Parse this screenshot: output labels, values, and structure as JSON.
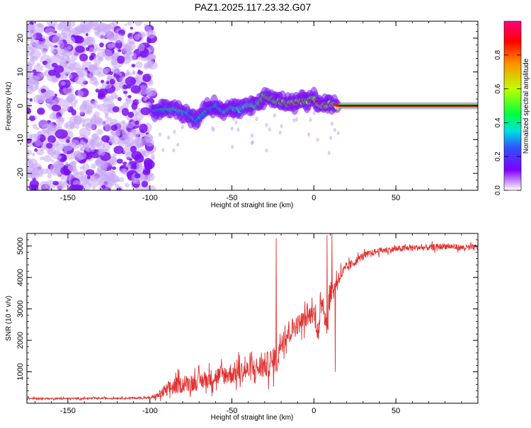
{
  "title": "PAZ1.2025.117.23.32.G07",
  "chart_data": [
    {
      "type": "heatmap",
      "xlabel": "Height of straight line (km)",
      "ylabel": "Frequency (Hz)",
      "xlim": [
        -175,
        100
      ],
      "ylim": [
        -25,
        25
      ],
      "x_ticks": [
        -150,
        -100,
        -50,
        0,
        50
      ],
      "y_ticks": [
        -20,
        -10,
        0,
        10,
        20
      ],
      "colorbar": {
        "label": "Normalized spectral amplitude",
        "range": [
          0,
          1
        ],
        "ticks": [
          0.0,
          0.2,
          0.4,
          0.6,
          0.8
        ],
        "colors": [
          "#ffffff",
          "#8000ff",
          "#3050ff",
          "#00e0e0",
          "#00ff40",
          "#c0ff00",
          "#ff9000",
          "#ff0000",
          "#ff0080"
        ]
      },
      "noise_region": {
        "x": [
          -175,
          -98
        ],
        "y": [
          -25,
          25
        ],
        "amplitude": 0.2
      },
      "signal_track": [
        {
          "x": -98,
          "y": -1.5,
          "a": 0.35
        },
        {
          "x": -92,
          "y": -1.0,
          "a": 0.45
        },
        {
          "x": -85,
          "y": -1.0,
          "a": 0.5
        },
        {
          "x": -78,
          "y": -2.0,
          "a": 0.45
        },
        {
          "x": -72,
          "y": -4.5,
          "a": 0.4
        },
        {
          "x": -65,
          "y": -1.0,
          "a": 0.45
        },
        {
          "x": -60,
          "y": 0.0,
          "a": 0.45
        },
        {
          "x": -55,
          "y": -2.0,
          "a": 0.5
        },
        {
          "x": -50,
          "y": -0.5,
          "a": 0.5
        },
        {
          "x": -45,
          "y": -1.0,
          "a": 0.55
        },
        {
          "x": -40,
          "y": 0.0,
          "a": 0.6
        },
        {
          "x": -35,
          "y": 0.0,
          "a": 0.65
        },
        {
          "x": -30,
          "y": 3.0,
          "a": 0.8
        },
        {
          "x": -25,
          "y": 2.0,
          "a": 0.8
        },
        {
          "x": -20,
          "y": 1.0,
          "a": 0.85
        },
        {
          "x": -15,
          "y": 0.5,
          "a": 0.85
        },
        {
          "x": -10,
          "y": 1.0,
          "a": 0.9
        },
        {
          "x": -5,
          "y": 1.5,
          "a": 0.85
        },
        {
          "x": 0,
          "y": 2.0,
          "a": 0.85
        },
        {
          "x": 5,
          "y": 0.0,
          "a": 0.9
        },
        {
          "x": 10,
          "y": 0.5,
          "a": 0.9
        },
        {
          "x": 15,
          "y": 0.0,
          "a": 0.95
        }
      ],
      "steady_line": {
        "x": [
          15,
          100
        ],
        "y": 0,
        "amplitude": 0.9
      }
    },
    {
      "type": "line",
      "xlabel": "Height of straight line (km)",
      "ylabel": "SNR (10 * v/v)",
      "xlim": [
        -175,
        100
      ],
      "ylim": [
        0,
        5400
      ],
      "x_ticks": [
        -150,
        -100,
        -50,
        0,
        50
      ],
      "y_ticks": [
        1000,
        2000,
        3000,
        4000,
        5000
      ],
      "line_color": "#e03030",
      "series": [
        {
          "x": [
            -175,
            -150,
            -125,
            -100,
            -95,
            -90,
            -85,
            -80,
            -75,
            -70,
            -65,
            -60,
            -55,
            -50,
            -45,
            -40,
            -35,
            -30,
            -25,
            -22,
            -20,
            -15,
            -10,
            -5,
            0,
            3,
            5,
            8,
            10,
            12,
            15,
            20,
            25,
            30,
            40,
            50,
            60,
            70,
            80,
            90,
            100
          ],
          "y": [
            150,
            150,
            160,
            170,
            250,
            400,
            550,
            600,
            650,
            700,
            750,
            850,
            900,
            950,
            1000,
            1050,
            1100,
            1200,
            1300,
            1500,
            2000,
            2300,
            2500,
            2700,
            2900,
            2200,
            3400,
            2400,
            3500,
            3600,
            4000,
            4300,
            4500,
            4700,
            4850,
            4900,
            4950,
            4950,
            5000,
            4950,
            4950
          ],
          "noise": [
            40,
            40,
            40,
            50,
            150,
            350,
            400,
            350,
            400,
            400,
            400,
            450,
            450,
            500,
            500,
            500,
            550,
            600,
            600,
            700,
            600,
            550,
            450,
            450,
            450,
            600,
            550,
            700,
            500,
            450,
            350,
            250,
            200,
            150,
            150,
            150,
            140,
            140,
            140,
            140,
            150
          ]
        }
      ],
      "spikes": [
        {
          "x": -23,
          "y": 5250
        },
        {
          "x": 8,
          "y": 5350
        },
        {
          "x": 11,
          "y": 5400
        },
        {
          "x": 13,
          "y": 1000
        }
      ]
    }
  ]
}
